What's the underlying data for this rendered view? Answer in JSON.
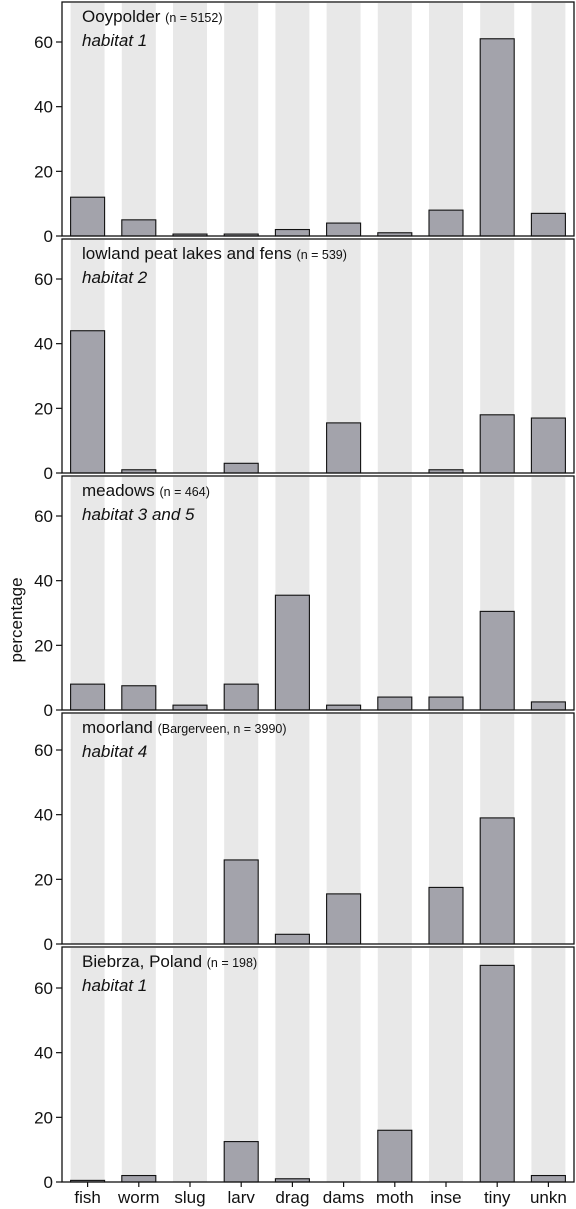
{
  "colors": {
    "band": "#e8e8e8",
    "bar": "#a3a3ab",
    "stroke": "#111111"
  },
  "chart_data": {
    "type": "bar",
    "ylabel": "percentage",
    "ylim": [
      0,
      70
    ],
    "yticks": [
      0,
      20,
      40,
      60
    ],
    "categories": [
      "fish",
      "worm",
      "slug",
      "larv",
      "drag",
      "dams",
      "moth",
      "inse",
      "tiny",
      "unkn"
    ],
    "panels": [
      {
        "title": "Ooypolder",
        "title_small": "(n = 5152)",
        "subtitle": "habitat 1",
        "values": [
          12,
          5,
          0.6,
          0.6,
          2,
          4,
          1,
          8,
          61,
          7
        ]
      },
      {
        "title": "lowland peat lakes and fens",
        "title_small": "(n = 539)",
        "subtitle": "habitat 2",
        "values": [
          44,
          1,
          0,
          3,
          0,
          15.5,
          0,
          1,
          18,
          17
        ]
      },
      {
        "title": "meadows",
        "title_small": "(n = 464)",
        "subtitle": "habitat 3 and 5",
        "values": [
          8,
          7.5,
          1.5,
          8,
          35.5,
          1.5,
          4,
          4,
          30.5,
          2.5
        ]
      },
      {
        "title": "moorland",
        "title_small": "(Bargerveen, n = 3990)",
        "subtitle": "habitat 4",
        "values": [
          0,
          0,
          0,
          26,
          3,
          15.5,
          0,
          17.5,
          39,
          0
        ]
      },
      {
        "title": "Biebrza, Poland",
        "title_small": "(n = 198)",
        "subtitle": "habitat 1",
        "values": [
          0.5,
          2,
          0,
          12.5,
          1,
          0,
          16,
          0,
          67,
          2
        ]
      }
    ]
  }
}
